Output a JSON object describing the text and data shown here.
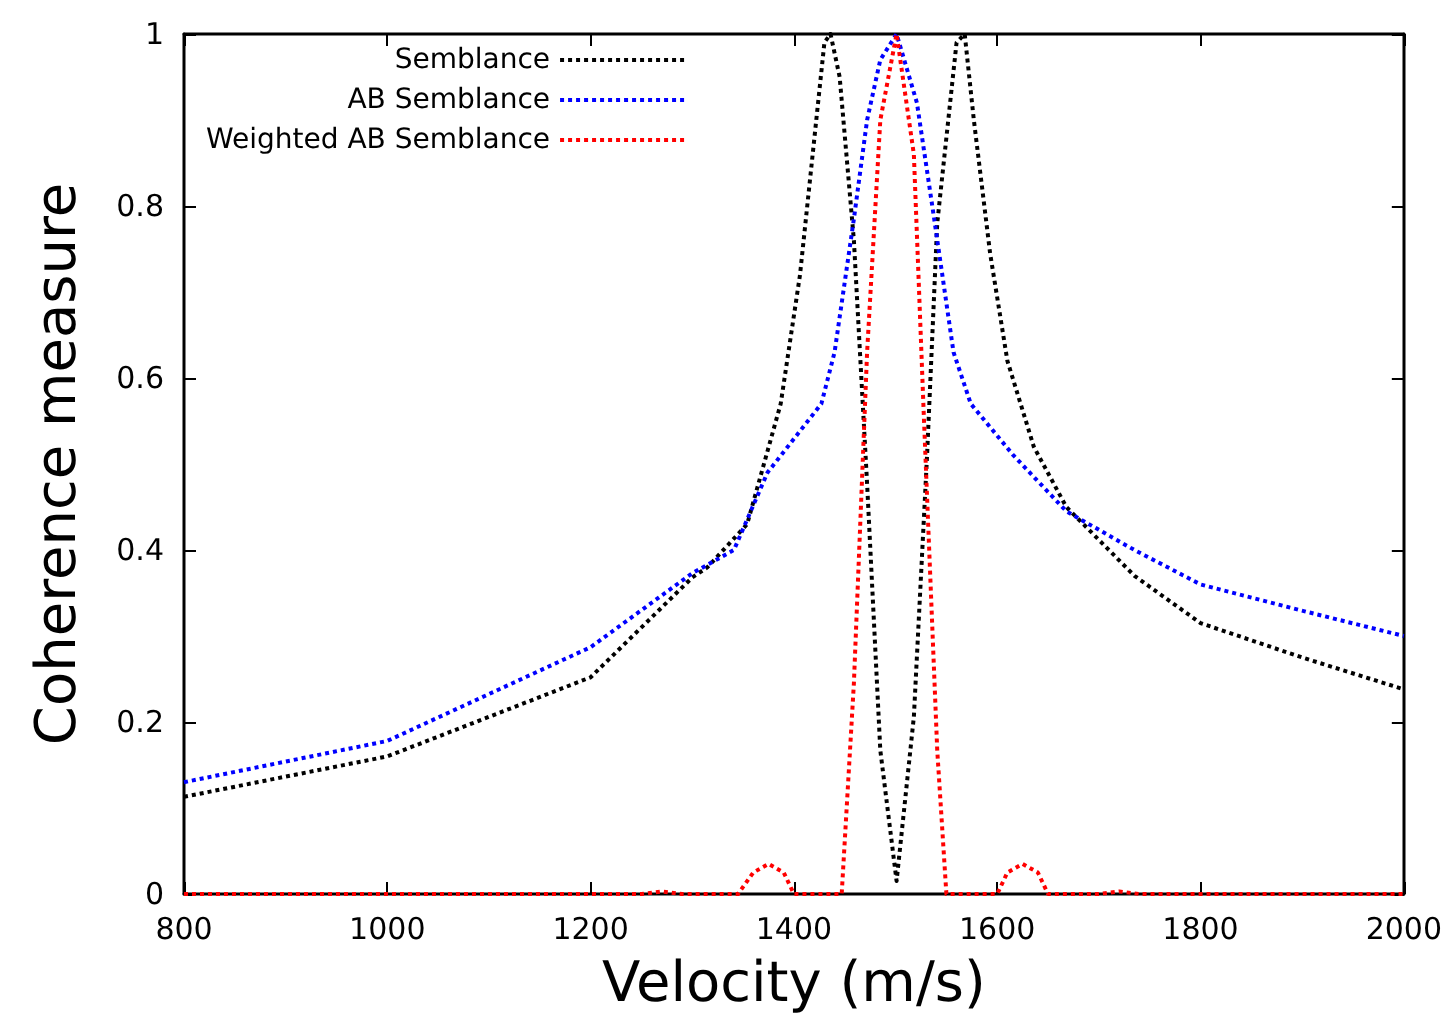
{
  "chart_data": {
    "type": "line",
    "xlabel": "Velocity (m/s)",
    "ylabel": "Coherence measure",
    "xlim": [
      800,
      2000
    ],
    "xticks": [
      800,
      1000,
      1200,
      1400,
      1600,
      1800,
      2000
    ],
    "ylim": [
      0,
      1
    ],
    "yticks": [
      0,
      0.2,
      0.4,
      0.6,
      0.8,
      1
    ],
    "grid": false,
    "legend": "top",
    "marker": "none",
    "line_style": "dotted",
    "series": [
      {
        "name": "Semblance",
        "color": "#000000",
        "x": [
          800,
          1000,
          1200,
          1300,
          1315,
          1354,
          1387,
          1406,
          1430,
          1436,
          1445,
          1459,
          1472,
          1485,
          1501,
          1518,
          1531,
          1541,
          1560,
          1568,
          1577,
          1593,
          1610,
          1636,
          1668,
          1735,
          1800,
          1900,
          2000
        ],
        "values": [
          0.113,
          0.16,
          0.252,
          0.368,
          0.38,
          0.43,
          0.57,
          0.72,
          0.99,
          1.0,
          0.95,
          0.76,
          0.477,
          0.167,
          0.015,
          0.206,
          0.51,
          0.78,
          0.99,
          1.0,
          0.9,
          0.745,
          0.62,
          0.52,
          0.45,
          0.37,
          0.315,
          0.275,
          0.238
        ]
      },
      {
        "name": "AB Semblance",
        "color": "#0000ff",
        "x": [
          800,
          1000,
          1200,
          1300,
          1341,
          1374,
          1427,
          1440,
          1459,
          1472,
          1485,
          1501,
          1521,
          1538,
          1557,
          1574,
          1616,
          1668,
          1735,
          1800,
          1898,
          2000
        ],
        "values": [
          0.13,
          0.178,
          0.287,
          0.373,
          0.4,
          0.49,
          0.57,
          0.63,
          0.785,
          0.9,
          0.97,
          1.0,
          0.92,
          0.785,
          0.63,
          0.57,
          0.51,
          0.445,
          0.4,
          0.36,
          0.33,
          0.3
        ]
      },
      {
        "name": "Weighted AB Semblance",
        "color": "#ff0000",
        "x": [
          800,
          1250,
          1270,
          1290,
          1345,
          1360,
          1375,
          1390,
          1400,
          1447,
          1459,
          1472,
          1485,
          1501,
          1518,
          1528,
          1541,
          1550,
          1600,
          1610,
          1625,
          1640,
          1650,
          1700,
          1720,
          1740,
          2000
        ],
        "values": [
          0,
          0,
          0.003,
          0,
          0,
          0.025,
          0.035,
          0.025,
          0,
          0,
          0.245,
          0.63,
          0.9,
          1.0,
          0.86,
          0.55,
          0.167,
          0,
          0,
          0.025,
          0.035,
          0.025,
          0,
          0,
          0.003,
          0,
          0
        ]
      }
    ]
  }
}
